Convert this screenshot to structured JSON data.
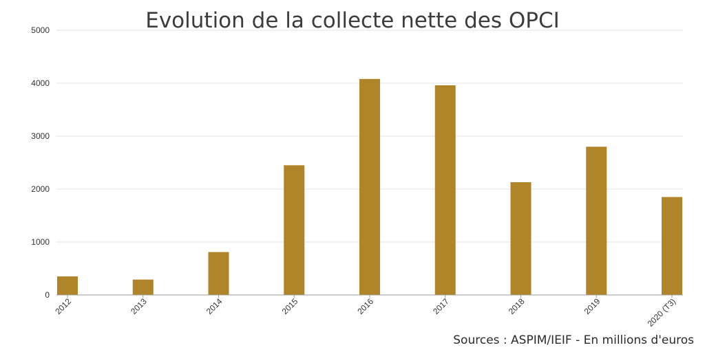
{
  "chart_data": {
    "type": "bar",
    "title": "Evolution de la collecte nette des OPCI",
    "source": "Sources : ASPIM/IEIF - En millions d'euros",
    "categories": [
      "2012",
      "2013",
      "2014",
      "2015",
      "2016",
      "2017",
      "2018",
      "2019",
      "2020 (T3)"
    ],
    "values": [
      350,
      290,
      810,
      2450,
      4080,
      3960,
      2130,
      2800,
      1850
    ],
    "ylim": [
      0,
      5000
    ],
    "yticks": [
      0,
      1000,
      2000,
      3000,
      4000,
      5000
    ],
    "ytick_labels": [
      "0",
      "1000",
      "2000",
      "3000",
      "4000",
      "5000"
    ],
    "grid": true,
    "legend": "none",
    "bar_color": "#b0852a",
    "grid_color": "#e3e3e3",
    "axis_color": "#9a9a9a"
  }
}
